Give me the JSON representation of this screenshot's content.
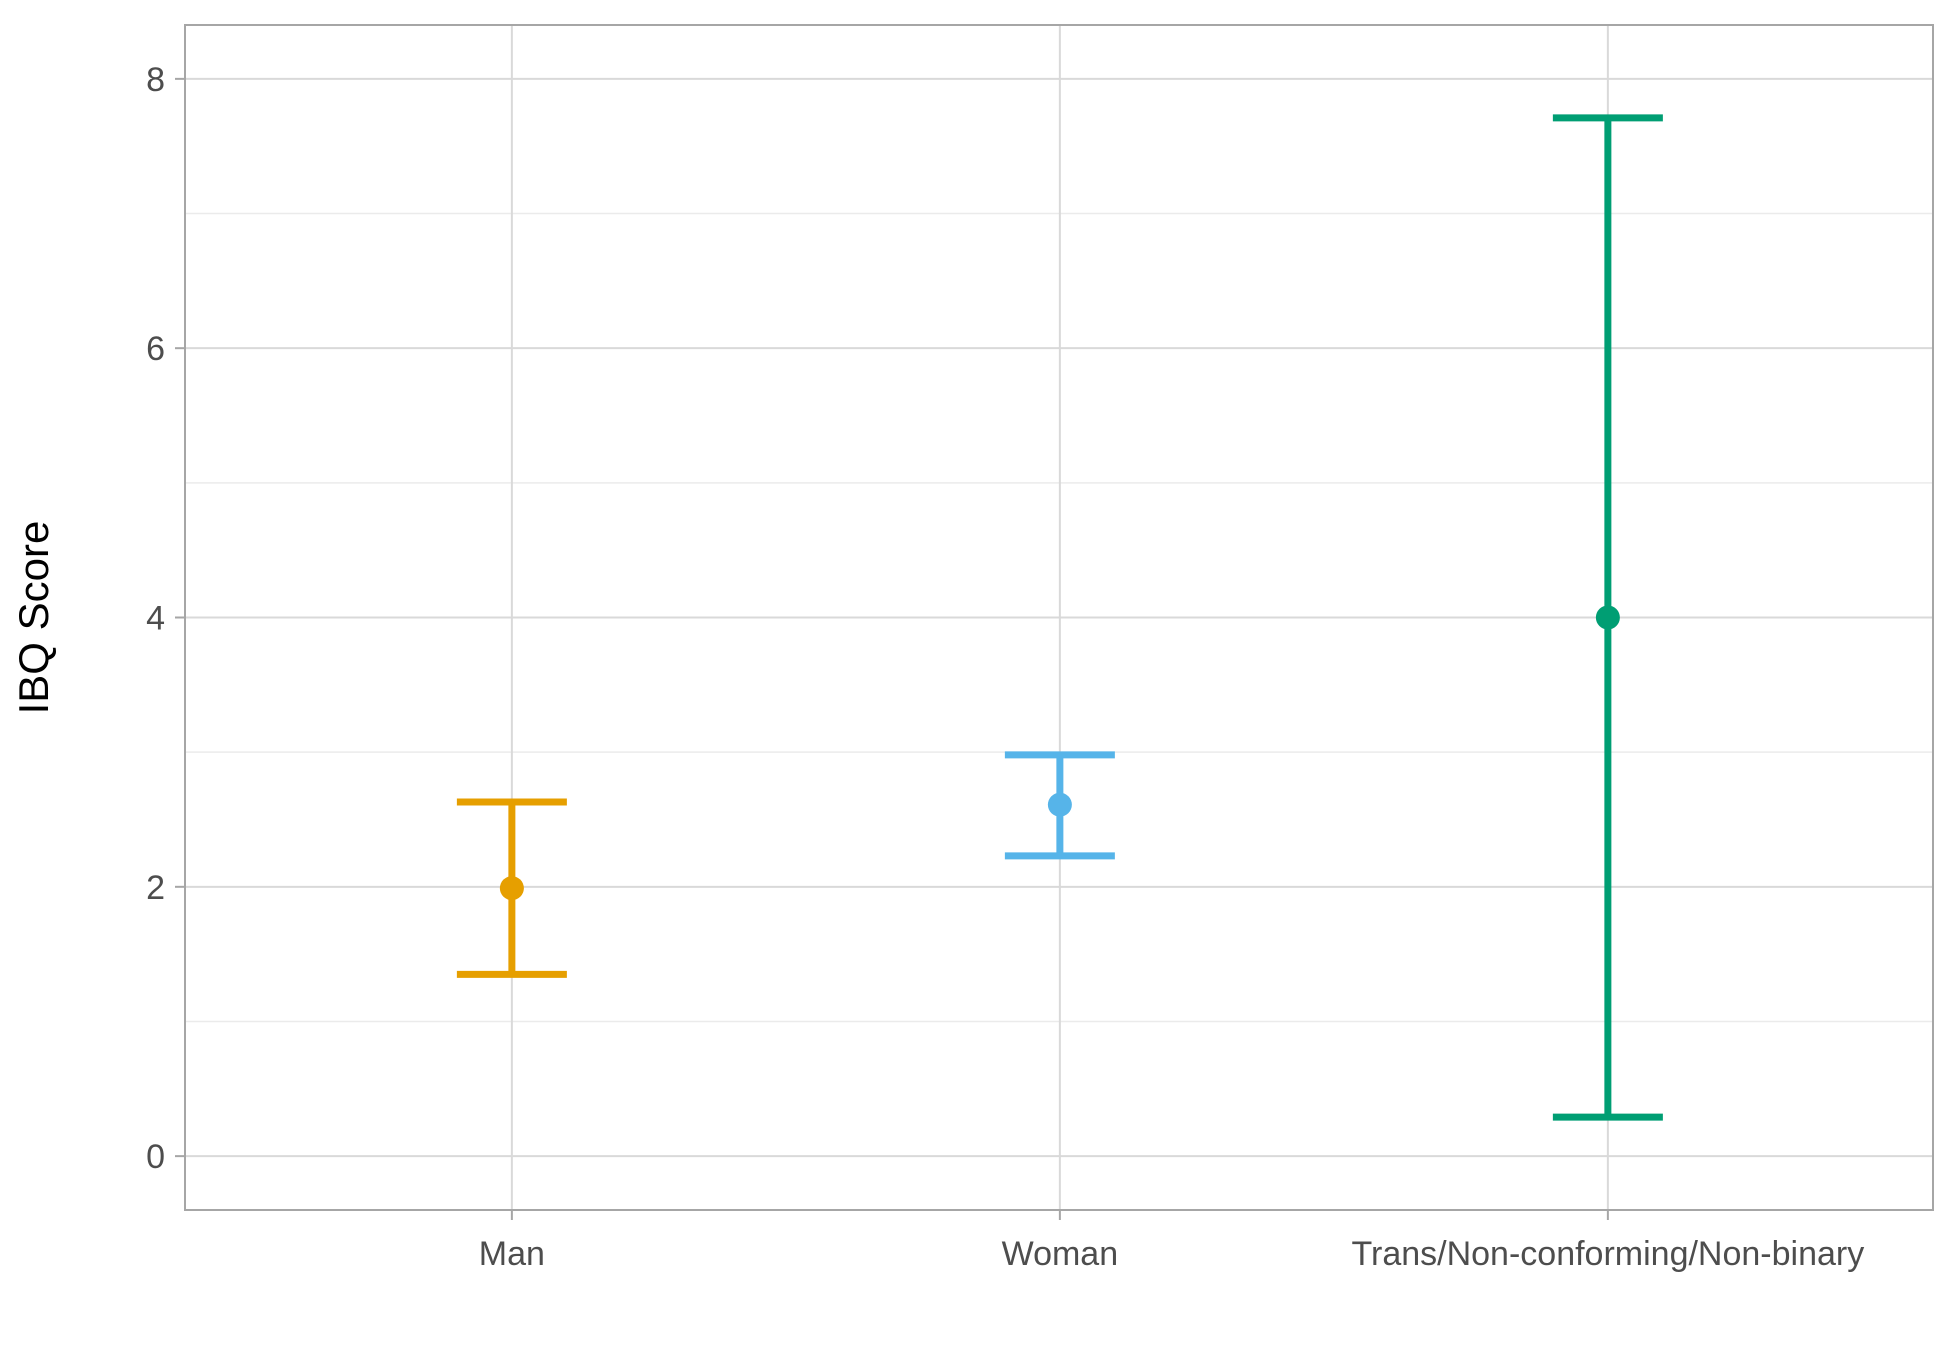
{
  "chart_data": {
    "type": "errorbar",
    "title": "",
    "xlabel": "",
    "ylabel": "IBQ Score",
    "ylim": [
      -0.4,
      8.4
    ],
    "yticks": [
      0,
      2,
      4,
      6,
      8
    ],
    "grid": true,
    "legend": "none",
    "categories": [
      "Man",
      "Woman",
      "Trans/Non-conforming/Non-binary"
    ],
    "points": [
      {
        "category": "Man",
        "mean": 1.99,
        "lower": 1.35,
        "upper": 2.63,
        "color": "#E69F00"
      },
      {
        "category": "Woman",
        "mean": 2.61,
        "lower": 2.23,
        "upper": 2.98,
        "color": "#56B4E9"
      },
      {
        "category": "Trans/Non-conforming/Non-binary",
        "mean": 4.0,
        "lower": 0.29,
        "upper": 7.71,
        "color": "#009E73"
      }
    ]
  }
}
